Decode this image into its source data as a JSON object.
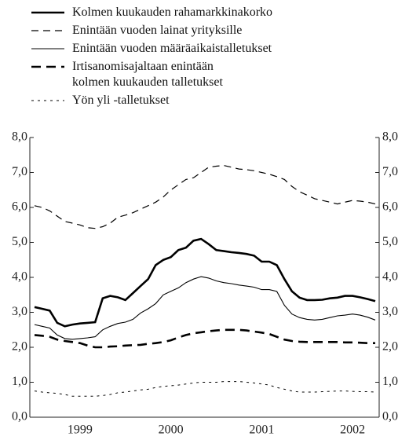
{
  "chart_data": {
    "type": "line",
    "categories": [
      null,
      null,
      null,
      null,
      null,
      null,
      "1999",
      null,
      null,
      null,
      null,
      null,
      null,
      null,
      null,
      null,
      null,
      null,
      "2000",
      null,
      null,
      null,
      null,
      null,
      null,
      null,
      null,
      null,
      null,
      null,
      "2001",
      null,
      null,
      null,
      null,
      null,
      null,
      null,
      null,
      null,
      null,
      null,
      "2002",
      null,
      null,
      null
    ],
    "series": [
      {
        "name": "Kolmen kuukauden rahamarkkinakorko",
        "color": "#000000",
        "style": "solid",
        "linewidth": 2.6,
        "values": [
          3.15,
          3.1,
          3.05,
          2.7,
          2.6,
          2.65,
          2.68,
          2.7,
          2.72,
          3.4,
          3.47,
          3.43,
          3.35,
          3.55,
          3.75,
          3.95,
          4.35,
          4.5,
          4.58,
          4.78,
          4.85,
          5.05,
          5.1,
          4.95,
          4.78,
          4.75,
          4.72,
          4.7,
          4.67,
          4.62,
          4.45,
          4.45,
          4.35,
          3.95,
          3.6,
          3.42,
          3.35,
          3.35,
          3.36,
          3.4,
          3.42,
          3.47,
          3.47,
          3.43,
          3.38,
          3.32
        ]
      },
      {
        "name": "Enintään vuoden lainat yrityksille",
        "color": "#000000",
        "style": "dashed",
        "linewidth": 1.2,
        "values": [
          6.05,
          6.0,
          5.9,
          5.75,
          5.6,
          5.55,
          5.5,
          5.42,
          5.4,
          5.45,
          5.55,
          5.72,
          5.78,
          5.85,
          5.95,
          6.05,
          6.15,
          6.3,
          6.5,
          6.65,
          6.8,
          6.85,
          7.0,
          7.15,
          7.18,
          7.2,
          7.15,
          7.1,
          7.08,
          7.05,
          7.0,
          6.95,
          6.88,
          6.8,
          6.6,
          6.45,
          6.35,
          6.25,
          6.2,
          6.15,
          6.1,
          6.15,
          6.2,
          6.18,
          6.15,
          6.1
        ]
      },
      {
        "name": "Enintään vuoden määräaikaistalletukset",
        "color": "#000000",
        "style": "solid",
        "linewidth": 1.1,
        "values": [
          2.65,
          2.6,
          2.55,
          2.35,
          2.25,
          2.23,
          2.25,
          2.27,
          2.3,
          2.5,
          2.6,
          2.68,
          2.72,
          2.8,
          2.98,
          3.1,
          3.25,
          3.5,
          3.6,
          3.7,
          3.85,
          3.95,
          4.02,
          3.98,
          3.9,
          3.85,
          3.82,
          3.78,
          3.75,
          3.72,
          3.65,
          3.65,
          3.6,
          3.2,
          2.95,
          2.85,
          2.8,
          2.78,
          2.8,
          2.85,
          2.9,
          2.92,
          2.95,
          2.92,
          2.86,
          2.78
        ]
      },
      {
        "name": "Irtisanomisajaltaan enintään kolmen kuukauden talletukset",
        "color": "#000000",
        "style": "dashed",
        "linewidth": 2.6,
        "values": [
          2.35,
          2.33,
          2.3,
          2.22,
          2.18,
          2.15,
          2.12,
          2.05,
          2.0,
          2.0,
          2.02,
          2.03,
          2.05,
          2.06,
          2.07,
          2.1,
          2.12,
          2.15,
          2.2,
          2.28,
          2.35,
          2.4,
          2.43,
          2.46,
          2.48,
          2.5,
          2.5,
          2.5,
          2.48,
          2.45,
          2.42,
          2.38,
          2.3,
          2.22,
          2.18,
          2.16,
          2.15,
          2.15,
          2.15,
          2.15,
          2.15,
          2.14,
          2.14,
          2.13,
          2.12,
          2.12
        ]
      },
      {
        "name": "Yön yli -talletukset",
        "color": "#000000",
        "style": "dotted",
        "linewidth": 1.0,
        "values": [
          0.75,
          0.72,
          0.7,
          0.68,
          0.65,
          0.6,
          0.6,
          0.6,
          0.6,
          0.62,
          0.65,
          0.7,
          0.72,
          0.75,
          0.78,
          0.8,
          0.85,
          0.88,
          0.9,
          0.92,
          0.95,
          0.98,
          1.0,
          1.0,
          1.0,
          1.02,
          1.02,
          1.02,
          1.0,
          0.98,
          0.95,
          0.92,
          0.85,
          0.8,
          0.75,
          0.72,
          0.72,
          0.72,
          0.73,
          0.74,
          0.75,
          0.75,
          0.74,
          0.73,
          0.73,
          0.72
        ]
      }
    ],
    "ylim": [
      0,
      8
    ],
    "yticks": [
      {
        "value": 0,
        "label": "0,0"
      },
      {
        "value": 1,
        "label": "1,0"
      },
      {
        "value": 2,
        "label": "2,0"
      },
      {
        "value": 3,
        "label": "3,0"
      },
      {
        "value": 4,
        "label": "4,0"
      },
      {
        "value": 5,
        "label": "5,0"
      },
      {
        "value": 6,
        "label": "6,0"
      },
      {
        "value": 7,
        "label": "7,0"
      },
      {
        "value": 8,
        "label": "8,0"
      }
    ],
    "grid": false
  }
}
